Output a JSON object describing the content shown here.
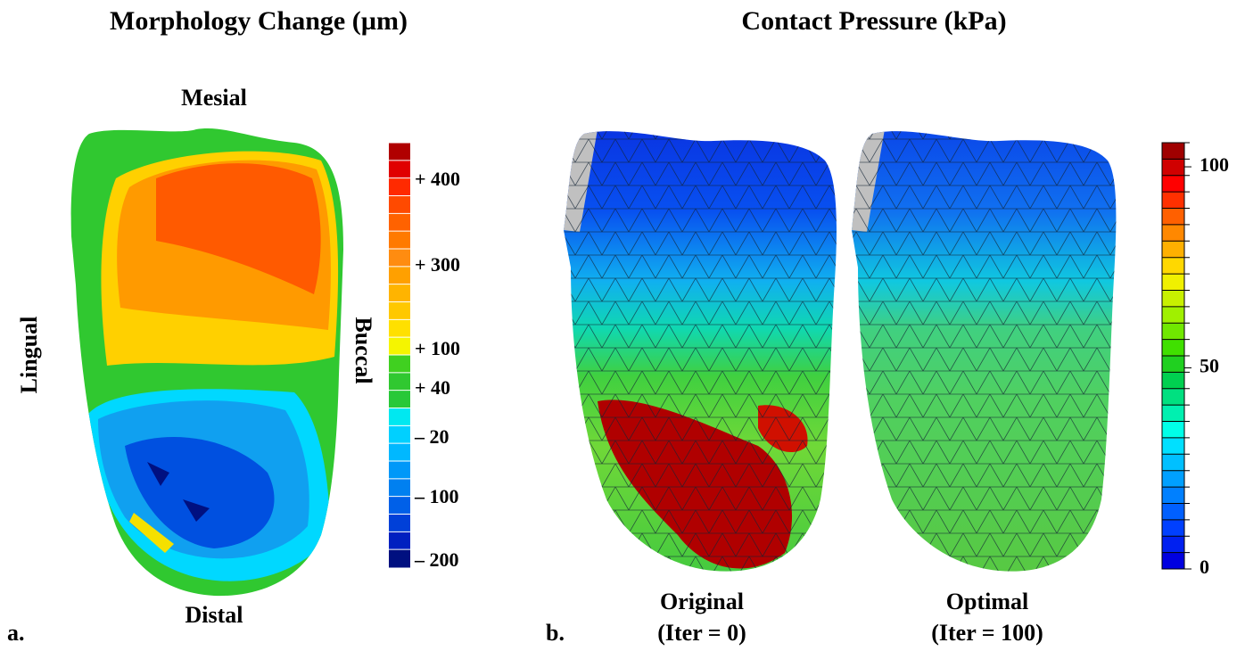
{
  "panel_a": {
    "label": "a.",
    "title": "Morphology Change (µm)",
    "orientation": {
      "top": "Mesial",
      "bottom": "Distal",
      "left": "Lingual",
      "right": "Buccal"
    },
    "colorbar": {
      "colors": [
        "#b00000",
        "#e00000",
        "#ff2a00",
        "#ff4a00",
        "#ff6200",
        "#ff7a00",
        "#ff8c10",
        "#ffa000",
        "#ffb400",
        "#ffc800",
        "#ffe000",
        "#f5f500",
        "#40d020",
        "#30c830",
        "#28c838",
        "#00e8f0",
        "#00d0ff",
        "#00b8ff",
        "#0098f8",
        "#0080f0",
        "#0060e8",
        "#0040d8",
        "#0020c0",
        "#001080"
      ],
      "tick_labels": [
        "+ 400",
        "+ 300",
        "+ 100",
        "+   40",
        "– 20",
        "– 100",
        "– 200"
      ]
    }
  },
  "panel_b": {
    "label": "b.",
    "title": "Contact Pressure (kPa)",
    "views": [
      {
        "name": "Original",
        "caption": "(Iter = 0)"
      },
      {
        "name": "Optimal",
        "caption": "(Iter = 100)"
      }
    ],
    "colorbar": {
      "colors": [
        "#0000e0",
        "#0020f0",
        "#0040ff",
        "#0060ff",
        "#0080ff",
        "#00a0ff",
        "#00c0ff",
        "#00e0ff",
        "#00ffe8",
        "#00f0b0",
        "#00e080",
        "#00d050",
        "#20d020",
        "#40e000",
        "#70e800",
        "#a0f000",
        "#c8f000",
        "#f0f000",
        "#ffd800",
        "#ffb000",
        "#ff8800",
        "#ff6000",
        "#ff3000",
        "#ff0000",
        "#d00000",
        "#a00000"
      ],
      "lim": [
        0,
        106
      ],
      "ticks": [
        0,
        50,
        100
      ]
    }
  }
}
